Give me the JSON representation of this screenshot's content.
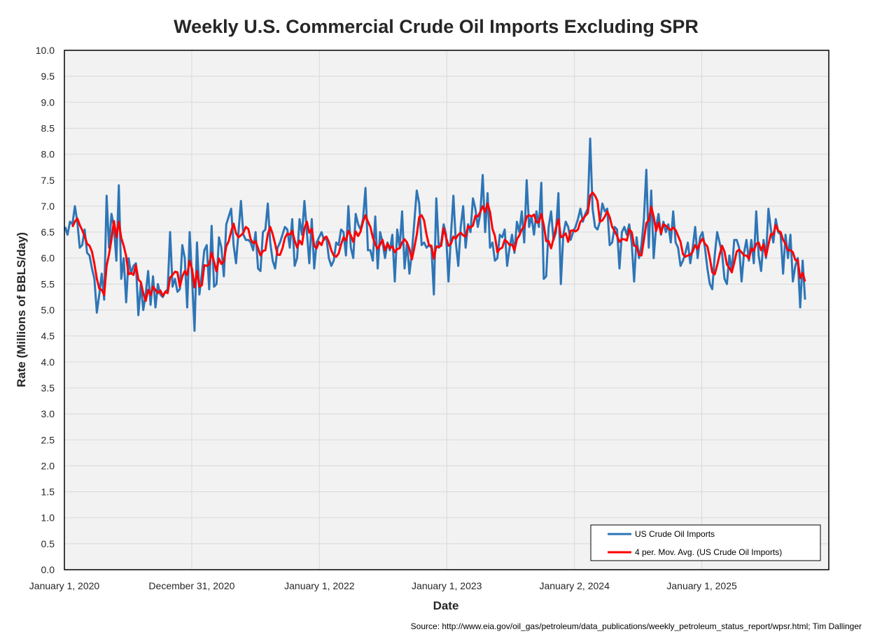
{
  "chart_data": {
    "type": "line",
    "title": "Weekly U.S. Commercial Crude Oil Imports Excluding SPR",
    "xlabel": "Date",
    "ylabel": "Rate (Millions of BBLS/day)",
    "source": "Source: http://www.eia.gov/oil_gas/petroleum/data_publications/weekly_petroleum_status_report/wpsr.html; Tim Dallinger",
    "ylim": [
      0,
      10
    ],
    "ytick_step": 0.5,
    "xlim": [
      "2020-01-01",
      "2025-12-31"
    ],
    "x_ticks": [
      {
        "date": "2020-01-01",
        "label": "January 1, 2020"
      },
      {
        "date": "2020-12-31",
        "label": "December 31, 2020"
      },
      {
        "date": "2022-01-01",
        "label": "January 1, 2022"
      },
      {
        "date": "2023-01-01",
        "label": "January 1, 2023"
      },
      {
        "date": "2024-01-02",
        "label": "January 2, 2024"
      },
      {
        "date": "2025-01-01",
        "label": "January 1, 2025"
      }
    ],
    "grid": true,
    "legend_position": "bottom-right",
    "x_start": "2020-01-03",
    "x_step_days": 7,
    "series": [
      {
        "name": "US Crude Oil Imports",
        "color": "#2e75b6",
        "values": [
          6.6,
          6.45,
          6.7,
          6.65,
          7.0,
          6.7,
          6.2,
          6.25,
          6.55,
          6.1,
          6.05,
          5.8,
          5.6,
          4.95,
          5.3,
          5.7,
          5.2,
          7.2,
          6.2,
          6.85,
          6.6,
          5.95,
          7.4,
          5.6,
          6.0,
          5.15,
          6.0,
          5.7,
          5.85,
          5.9,
          4.9,
          5.5,
          5.0,
          5.3,
          5.75,
          5.1,
          5.65,
          5.05,
          5.5,
          5.3,
          5.25,
          5.35,
          5.4,
          6.5,
          5.45,
          5.6,
          5.35,
          5.4,
          6.25,
          6.0,
          5.05,
          6.5,
          5.6,
          4.6,
          6.3,
          5.3,
          5.7,
          6.15,
          6.25,
          5.4,
          6.62,
          5.45,
          5.5,
          6.4,
          6.2,
          5.65,
          6.65,
          6.8,
          6.95,
          6.25,
          5.9,
          6.5,
          7.1,
          6.45,
          6.35,
          6.35,
          6.3,
          6.15,
          6.5,
          5.8,
          5.75,
          6.5,
          6.55,
          7.05,
          6.3,
          5.95,
          5.8,
          6.2,
          6.3,
          6.45,
          6.6,
          6.55,
          6.2,
          6.75,
          5.85,
          6.0,
          6.75,
          6.45,
          7.1,
          6.5,
          5.9,
          6.75,
          5.8,
          6.3,
          6.4,
          6.5,
          6.35,
          6.4,
          6.0,
          5.85,
          5.95,
          6.3,
          6.25,
          6.55,
          6.5,
          6.05,
          7.0,
          6.2,
          6.0,
          6.85,
          6.65,
          6.55,
          6.75,
          7.35,
          6.15,
          6.15,
          5.95,
          6.8,
          5.8,
          6.5,
          6.3,
          6.0,
          6.3,
          6.15,
          6.45,
          5.55,
          6.55,
          6.2,
          6.9,
          5.8,
          6.3,
          5.7,
          6.1,
          6.7,
          7.3,
          7.05,
          6.25,
          6.3,
          6.2,
          6.25,
          6.2,
          5.3,
          7.15,
          6.2,
          6.3,
          6.65,
          6.45,
          5.55,
          6.45,
          7.2,
          6.3,
          5.85,
          6.6,
          7.0,
          6.2,
          6.65,
          6.5,
          7.15,
          6.95,
          6.6,
          6.85,
          7.6,
          6.5,
          7.25,
          6.2,
          6.3,
          5.95,
          6.0,
          6.45,
          6.4,
          6.55,
          5.85,
          6.2,
          6.45,
          6.1,
          6.7,
          6.5,
          6.9,
          6.3,
          7.5,
          6.6,
          6.8,
          6.45,
          6.9,
          6.6,
          7.45,
          5.6,
          5.65,
          6.6,
          6.9,
          6.35,
          6.5,
          7.25,
          5.5,
          6.45,
          6.7,
          6.6,
          6.35,
          6.5,
          6.6,
          6.75,
          6.95,
          6.7,
          6.85,
          6.95,
          8.3,
          6.95,
          6.6,
          6.55,
          6.7,
          7.05,
          6.9,
          6.95,
          6.25,
          6.3,
          6.6,
          6.55,
          5.8,
          6.5,
          6.6,
          6.45,
          6.65,
          6.3,
          5.55,
          6.4,
          6.0,
          6.25,
          6.75,
          7.7,
          6.2,
          7.3,
          6.0,
          6.6,
          6.85,
          6.45,
          6.7,
          6.5,
          6.65,
          6.3,
          6.9,
          6.3,
          6.2,
          5.85,
          5.95,
          6.1,
          6.3,
          5.9,
          6.2,
          6.6,
          6.0,
          6.4,
          6.5,
          6.2,
          5.8,
          5.5,
          5.4,
          6.05,
          6.5,
          6.3,
          6.1,
          5.6,
          5.5,
          6.05,
          5.75,
          6.35,
          6.35,
          6.2,
          5.55,
          6.1,
          6.35,
          5.95,
          6.35,
          5.9,
          6.9,
          6.05,
          5.75,
          6.35,
          6.0,
          6.95,
          6.55,
          6.3,
          6.75,
          6.5,
          6.45,
          5.7,
          6.45,
          6.0,
          6.45,
          5.55,
          5.85,
          6.0,
          5.05,
          5.95,
          5.2
        ]
      },
      {
        "name": "4 per. Mov. Avg. (US Crude Oil Imports)",
        "color": "#ff0000",
        "moving_average_of": 0,
        "period": 4
      }
    ]
  }
}
